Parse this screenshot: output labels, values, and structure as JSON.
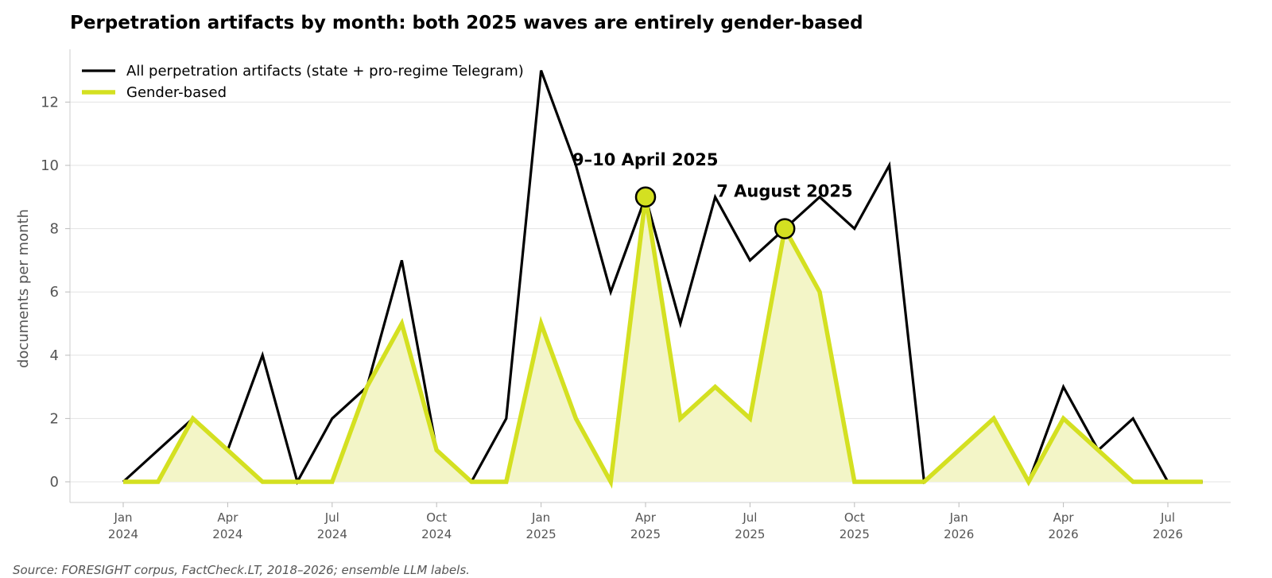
{
  "title": "Perpetration artifacts by month: both 2025 waves are entirely gender-based",
  "source": "Source: FORESIGHT corpus, FactCheck.LT, 2018–2026; ensemble LLM labels.",
  "chart_data": {
    "type": "line",
    "x": [
      "2024-01",
      "2024-02",
      "2024-03",
      "2024-04",
      "2024-05",
      "2024-06",
      "2024-07",
      "2024-08",
      "2024-09",
      "2024-10",
      "2024-11",
      "2024-12",
      "2025-01",
      "2025-02",
      "2025-03",
      "2025-04",
      "2025-05",
      "2025-06",
      "2025-07",
      "2025-08",
      "2025-09",
      "2025-10",
      "2025-11",
      "2025-12",
      "2026-01",
      "2026-02",
      "2026-03",
      "2026-04",
      "2026-05",
      "2026-06",
      "2026-07",
      "2026-08"
    ],
    "series": [
      {
        "name": "All perpetration artifacts (state + pro-regime Telegram)",
        "color": "#000000",
        "values": [
          0,
          1,
          2,
          1,
          4,
          0,
          2,
          3,
          7,
          1,
          0,
          2,
          13,
          10,
          6,
          9,
          5,
          9,
          7,
          8,
          9,
          8,
          10,
          0,
          1,
          2,
          0,
          3,
          1,
          2,
          0,
          0
        ]
      },
      {
        "name": "Gender-based",
        "color": "#d4e021",
        "fill": "#f3f5c7",
        "values": [
          0,
          0,
          2,
          1,
          0,
          0,
          0,
          3,
          5,
          1,
          0,
          0,
          5,
          2,
          0,
          9,
          2,
          3,
          2,
          8,
          6,
          0,
          0,
          0,
          1,
          2,
          0,
          2,
          1,
          0,
          0,
          0
        ]
      }
    ],
    "ylabel": "documents per month",
    "xlabel": "",
    "ylim": [
      -0.6,
      13.2
    ],
    "yticks": [
      0,
      2,
      4,
      6,
      8,
      10,
      12
    ],
    "xticks": [
      {
        "month": "2024-01",
        "line1": "Jan",
        "line2": "2024"
      },
      {
        "month": "2024-04",
        "line1": "Apr",
        "line2": "2024"
      },
      {
        "month": "2024-07",
        "line1": "Jul",
        "line2": "2024"
      },
      {
        "month": "2024-10",
        "line1": "Oct",
        "line2": "2024"
      },
      {
        "month": "2025-01",
        "line1": "Jan",
        "line2": "2025"
      },
      {
        "month": "2025-04",
        "line1": "Apr",
        "line2": "2025"
      },
      {
        "month": "2025-07",
        "line1": "Jul",
        "line2": "2025"
      },
      {
        "month": "2025-10",
        "line1": "Oct",
        "line2": "2025"
      },
      {
        "month": "2026-01",
        "line1": "Jan",
        "line2": "2026"
      },
      {
        "month": "2026-04",
        "line1": "Apr",
        "line2": "2026"
      },
      {
        "month": "2026-07",
        "line1": "Jul",
        "line2": "2026"
      }
    ],
    "annotations": [
      {
        "label": "9–10 April 2025",
        "month": "2025-04",
        "value": 9
      },
      {
        "label": "7 August 2025",
        "month": "2025-08",
        "value": 8
      }
    ],
    "grid": "horizontal",
    "legend": "top-left"
  }
}
